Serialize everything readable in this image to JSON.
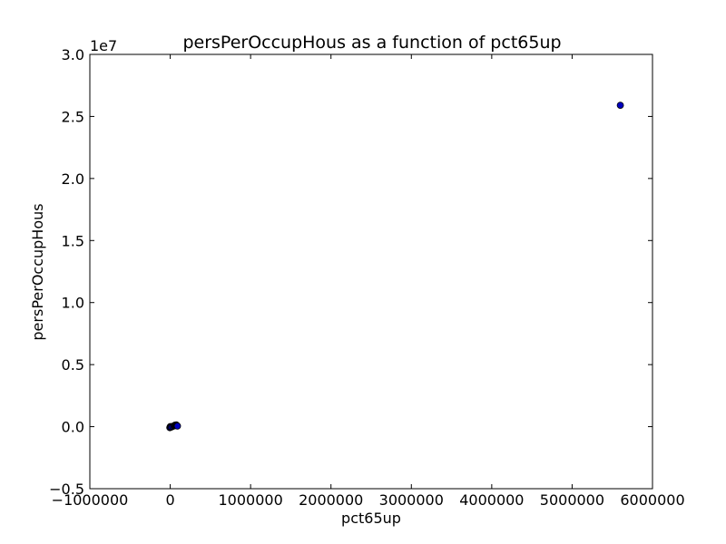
{
  "chart_data": {
    "type": "scatter",
    "title": "persPerOccupHous as a function of pct65up",
    "xlabel": "pct65up",
    "ylabel": "persPerOccupHous",
    "y_offset_label": "1e7",
    "xlim": [
      -1000000,
      6000000
    ],
    "ylim": [
      -5000000,
      30000000
    ],
    "xticks": [
      -1000000,
      0,
      1000000,
      2000000,
      3000000,
      4000000,
      5000000,
      6000000
    ],
    "xtick_labels": [
      "−1000000",
      "0",
      "1000000",
      "2000000",
      "3000000",
      "4000000",
      "5000000",
      "6000000"
    ],
    "yticks": [
      -5000000,
      0,
      5000000,
      10000000,
      15000000,
      20000000,
      25000000,
      30000000
    ],
    "ytick_labels": [
      "−0.5",
      "0.0",
      "0.5",
      "1.0",
      "1.5",
      "2.0",
      "2.5",
      "3.0"
    ],
    "grid": false,
    "marker_color": "#0000bf",
    "series": [
      {
        "points": [
          {
            "x": 5600000,
            "y": 25900000
          },
          {
            "x": -5000,
            "y": -80000
          },
          {
            "x": 0,
            "y": 0
          },
          {
            "x": 5000,
            "y": -40000
          },
          {
            "x": 15000,
            "y": -20000
          },
          {
            "x": 30000,
            "y": 20000
          },
          {
            "x": 45000,
            "y": 60000
          },
          {
            "x": 55000,
            "y": 90000
          },
          {
            "x": 60000,
            "y": 120000
          },
          {
            "x": 70000,
            "y": 110000
          },
          {
            "x": 75000,
            "y": 140000
          },
          {
            "x": 80000,
            "y": 100000
          },
          {
            "x": 85000,
            "y": 70000
          },
          {
            "x": 90000,
            "y": 50000
          }
        ]
      }
    ]
  }
}
